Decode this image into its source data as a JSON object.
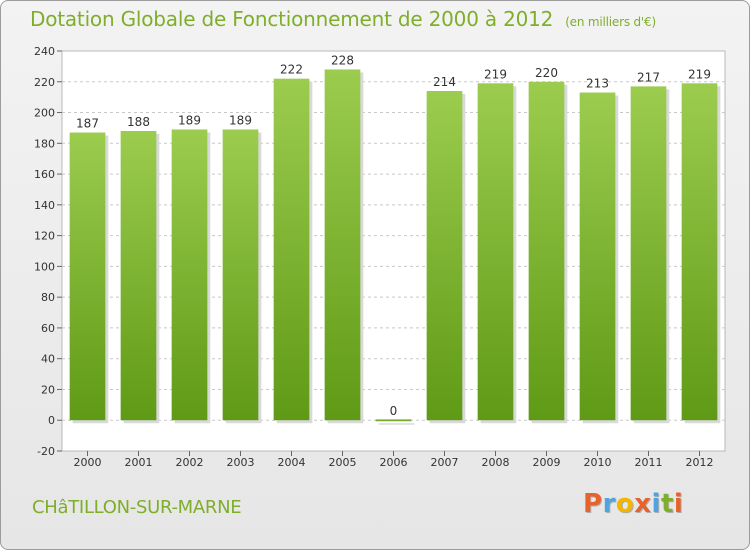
{
  "header": {
    "title": "Dotation Globale de Fonctionnement de 2000 à 2012",
    "unit": "(en milliers d'€)"
  },
  "footer": {
    "commune": "CHâTILLON-SUR-MARNE",
    "logo_text": "Proxiti"
  },
  "colors": {
    "accent": "#7fae2b",
    "bar_top": "#9ccc4e",
    "bar_bottom": "#5f9a16",
    "logo": [
      "#e8622c",
      "#4fa3df",
      "#f2b600",
      "#e8622c",
      "#4fa3df",
      "#7fae2b",
      "#e8622c"
    ]
  },
  "chart_data": {
    "type": "bar",
    "categories": [
      "2000",
      "2001",
      "2002",
      "2003",
      "2004",
      "2005",
      "2006",
      "2007",
      "2008",
      "2009",
      "2010",
      "2011",
      "2012"
    ],
    "values": [
      187,
      188,
      189,
      189,
      222,
      228,
      0,
      214,
      219,
      220,
      213,
      217,
      219
    ],
    "ylim": [
      -20,
      240
    ],
    "yticks": [
      -20,
      0,
      20,
      40,
      60,
      80,
      100,
      120,
      140,
      160,
      180,
      200,
      220,
      240
    ],
    "grid": true,
    "data_labels": true
  }
}
